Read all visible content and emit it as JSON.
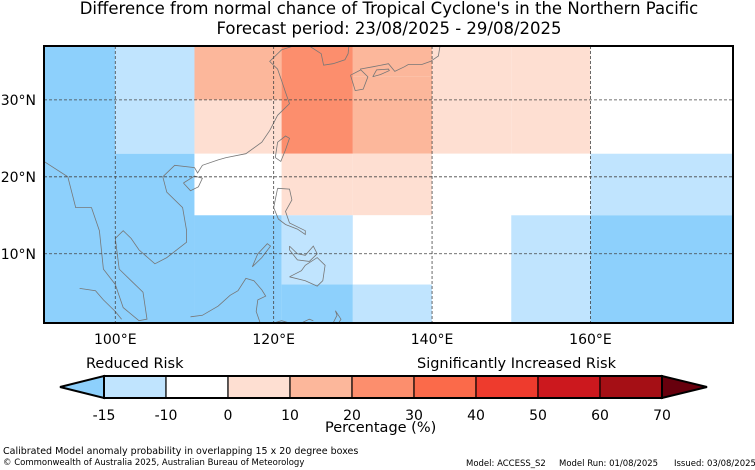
{
  "title": "Difference from normal chance of Tropical Cyclone's in the Northern Pacific",
  "subtitle": "Forecast period: 23/08/2025 - 29/08/2025",
  "map": {
    "lon_range": [
      91,
      178
    ],
    "lat_range": [
      1,
      37
    ],
    "lon_ticks": [
      {
        "value": 100,
        "label": "100°E"
      },
      {
        "value": 120,
        "label": "120°E"
      },
      {
        "value": 140,
        "label": "140°E"
      },
      {
        "value": 160,
        "label": "160°E"
      }
    ],
    "lat_ticks": [
      {
        "value": 30,
        "label": "30°N"
      },
      {
        "value": 20,
        "label": "20°N"
      },
      {
        "value": 10,
        "label": "10°N"
      }
    ],
    "grid_lines": "dashed",
    "cells_note_units": "degrees lon/lat",
    "cells": [
      {
        "lon": [
          91,
          100
        ],
        "lat": [
          1,
          37
        ],
        "bin": -15
      },
      {
        "lon": [
          100,
          110
        ],
        "lat": [
          23,
          37
        ],
        "bin": -10
      },
      {
        "lon": [
          100,
          110
        ],
        "lat": [
          1,
          23
        ],
        "bin": -15
      },
      {
        "lon": [
          110,
          121
        ],
        "lat": [
          30,
          37
        ],
        "bin": 10
      },
      {
        "lon": [
          110,
          121
        ],
        "lat": [
          23,
          30
        ],
        "bin": 0
      },
      {
        "lon": [
          110,
          121
        ],
        "lat": [
          15,
          23
        ],
        "bin": -5
      },
      {
        "lon": [
          110,
          121
        ],
        "lat": [
          1,
          15
        ],
        "bin": -15
      },
      {
        "lon": [
          121,
          130
        ],
        "lat": [
          23,
          37
        ],
        "bin": 20
      },
      {
        "lon": [
          121,
          130
        ],
        "lat": [
          15,
          23
        ],
        "bin": 0
      },
      {
        "lon": [
          121,
          130
        ],
        "lat": [
          6,
          15
        ],
        "bin": -10
      },
      {
        "lon": [
          121,
          130
        ],
        "lat": [
          1,
          6
        ],
        "bin": -15
      },
      {
        "lon": [
          130,
          140
        ],
        "lat": [
          33,
          37
        ],
        "bin": 10
      },
      {
        "lon": [
          130,
          140
        ],
        "lat": [
          23,
          33
        ],
        "bin": 10
      },
      {
        "lon": [
          130,
          140
        ],
        "lat": [
          15,
          23
        ],
        "bin": 0
      },
      {
        "lon": [
          130,
          140
        ],
        "lat": [
          6,
          15
        ],
        "bin": -5
      },
      {
        "lon": [
          130,
          140
        ],
        "lat": [
          1,
          6
        ],
        "bin": -10
      },
      {
        "lon": [
          140,
          150
        ],
        "lat": [
          23,
          37
        ],
        "bin": 0
      },
      {
        "lon": [
          140,
          150
        ],
        "lat": [
          1,
          23
        ],
        "bin": -5
      },
      {
        "lon": [
          150,
          160
        ],
        "lat": [
          23,
          37
        ],
        "bin": 0
      },
      {
        "lon": [
          150,
          160
        ],
        "lat": [
          15,
          23
        ],
        "bin": -5
      },
      {
        "lon": [
          150,
          160
        ],
        "lat": [
          1,
          15
        ],
        "bin": -10
      },
      {
        "lon": [
          160,
          178
        ],
        "lat": [
          23,
          37
        ],
        "bin": -5
      },
      {
        "lon": [
          160,
          178
        ],
        "lat": [
          15,
          23
        ],
        "bin": -10
      },
      {
        "lon": [
          160,
          178
        ],
        "lat": [
          1,
          15
        ],
        "bin": -15
      }
    ]
  },
  "colorbar": {
    "ticks": [
      "-15",
      "-10",
      "0",
      "10",
      "20",
      "30",
      "40",
      "50",
      "60",
      "70"
    ],
    "colors": [
      "#c0e4fe",
      "#ffffff",
      "#fedfd2",
      "#fcb79b",
      "#fc8e6d",
      "#fb6a4a",
      "#ee3b2d",
      "#cc181e",
      "#a50f15"
    ],
    "under_color": "#8dd0fc",
    "over_color": "#67000d",
    "xlabel": "Percentage (%)",
    "reduced_label": "Reduced Risk",
    "increased_label": "Significantly Increased Risk"
  },
  "bin_colors": {
    "-15": "#8dd0fc",
    "-10": "#c0e4fe",
    "-5": "#ffffff",
    "0": "#fedfd2",
    "10": "#fcb79b",
    "20": "#fc8e6d"
  },
  "footer": {
    "caption": "Calibrated Model anomaly probability in overlapping 15 x 20 degree boxes",
    "copyright": "© Commonwealth of Australia 2025, Australian Bureau of Meteorology",
    "model": "Model: ACCESS_S2",
    "model_run": "Model Run: 01/08/2025",
    "issued": "Issued: 03/08/2025"
  }
}
